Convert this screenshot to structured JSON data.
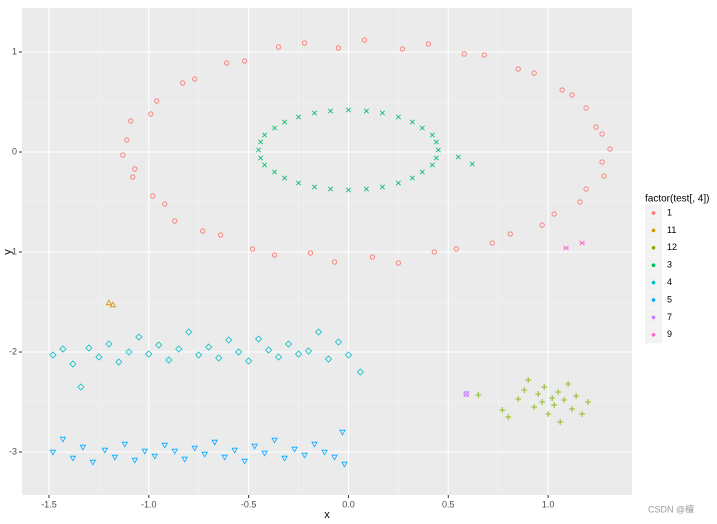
{
  "chart_data": {
    "type": "scatter",
    "x_label": "x",
    "y_label": "y",
    "legend_title": "factor(test[, 4])",
    "legend_position": "right",
    "annotation": "CSDN @檀",
    "grid": true,
    "xlim": [
      -1.635,
      1.42
    ],
    "ylim": [
      -3.43,
      1.44
    ],
    "xticks": [
      -1.5,
      {
        "value": -1,
        "label": "-1.0"
      },
      -0.5,
      {
        "value": 0,
        "label": "0.0"
      },
      0.5,
      {
        "value": 1,
        "label": "1.0"
      }
    ],
    "yticks": [
      -3,
      -2,
      -1,
      0,
      1
    ],
    "series": [
      {
        "name": "1",
        "color": "#F8766D",
        "shape": "circle",
        "x": [
          1.31,
          1.27,
          1.24,
          1.19,
          1.12,
          1.07,
          0.93,
          0.85,
          0.68,
          0.58,
          0.4,
          0.27,
          0.08,
          -0.05,
          -0.22,
          -0.35,
          -0.52,
          -0.61,
          -0.77,
          -0.83,
          -0.96,
          -0.99,
          -1.09,
          -1.11,
          -1.13,
          -1.07,
          -1.08,
          -0.98,
          -0.92,
          -0.87,
          -0.73,
          -0.64,
          -0.48,
          -0.37,
          -0.19,
          -0.07,
          0.12,
          0.25,
          0.43,
          0.54,
          0.72,
          0.81,
          0.97,
          1.03,
          1.16,
          1.19,
          1.28,
          1.27
        ],
        "y": [
          0.03,
          0.18,
          0.25,
          0.44,
          0.57,
          0.62,
          0.79,
          0.83,
          0.97,
          0.98,
          1.08,
          1.03,
          1.12,
          1.04,
          1.09,
          1.05,
          0.91,
          0.89,
          0.73,
          0.69,
          0.51,
          0.38,
          0.31,
          0.12,
          -0.03,
          -0.17,
          -0.25,
          -0.44,
          -0.52,
          -0.69,
          -0.79,
          -0.83,
          -0.97,
          -1.03,
          -1.01,
          -1.1,
          -1.05,
          -1.11,
          -1.0,
          -0.97,
          -0.91,
          -0.82,
          -0.73,
          -0.62,
          -0.5,
          -0.37,
          -0.24,
          -0.1
        ]
      },
      {
        "name": "11",
        "color": "#CD9600",
        "shape": "triangle",
        "x": [
          -1.2,
          -1.18
        ],
        "y": [
          -1.51,
          -1.53
        ]
      },
      {
        "name": "12",
        "color": "#7CAE00",
        "shape": "plus",
        "x": [
          0.65,
          0.77,
          0.8,
          0.85,
          0.88,
          0.9,
          0.93,
          0.95,
          0.97,
          0.98,
          1.0,
          1.02,
          1.03,
          1.05,
          1.06,
          1.08,
          1.1,
          1.12,
          1.14,
          1.17,
          1.2
        ],
        "y": [
          -2.43,
          -2.58,
          -2.65,
          -2.47,
          -2.38,
          -2.28,
          -2.55,
          -2.42,
          -2.5,
          -2.35,
          -2.62,
          -2.46,
          -2.53,
          -2.4,
          -2.7,
          -2.48,
          -2.32,
          -2.57,
          -2.44,
          -2.62,
          -2.5
        ]
      },
      {
        "name": "3",
        "color": "#00BE67",
        "shape": "cross",
        "x": [
          0.45,
          0.44,
          0.42,
          0.37,
          0.32,
          0.25,
          0.17,
          0.09,
          0.0,
          -0.09,
          -0.17,
          -0.25,
          -0.32,
          -0.37,
          -0.42,
          -0.44,
          -0.45,
          -0.44,
          -0.42,
          -0.37,
          -0.32,
          -0.25,
          -0.17,
          -0.09,
          0.0,
          0.09,
          0.17,
          0.25,
          0.32,
          0.37,
          0.42,
          0.44,
          0.55,
          0.62
        ],
        "y": [
          0.02,
          0.1,
          0.17,
          0.24,
          0.3,
          0.35,
          0.39,
          0.41,
          0.42,
          0.41,
          0.39,
          0.35,
          0.3,
          0.24,
          0.17,
          0.1,
          0.02,
          -0.06,
          -0.13,
          -0.2,
          -0.26,
          -0.31,
          -0.35,
          -0.37,
          -0.38,
          -0.37,
          -0.35,
          -0.31,
          -0.26,
          -0.2,
          -0.13,
          -0.06,
          -0.05,
          -0.12
        ]
      },
      {
        "name": "4",
        "color": "#00BFC4",
        "shape": "diamond",
        "x": [
          -1.48,
          -1.43,
          -1.38,
          -1.34,
          -1.3,
          -1.25,
          -1.2,
          -1.15,
          -1.1,
          -1.05,
          -1.0,
          -0.95,
          -0.9,
          -0.85,
          -0.8,
          -0.75,
          -0.7,
          -0.65,
          -0.6,
          -0.55,
          -0.5,
          -0.45,
          -0.4,
          -0.35,
          -0.3,
          -0.25,
          -0.2,
          -0.15,
          -0.1,
          -0.05,
          0.0,
          0.06
        ],
        "y": [
          -2.03,
          -1.97,
          -2.12,
          -2.35,
          -1.96,
          -2.05,
          -1.92,
          -2.1,
          -2.0,
          -1.85,
          -2.02,
          -1.93,
          -2.08,
          -1.97,
          -1.8,
          -2.03,
          -1.95,
          -2.06,
          -1.88,
          -2.0,
          -2.09,
          -1.87,
          -1.98,
          -2.05,
          -1.92,
          -2.02,
          -1.99,
          -1.8,
          -2.07,
          -1.9,
          -2.03,
          -2.2
        ]
      },
      {
        "name": "5",
        "color": "#00A9FF",
        "shape": "triangle-down",
        "x": [
          -1.48,
          -1.43,
          -1.38,
          -1.33,
          -1.28,
          -1.22,
          -1.17,
          -1.12,
          -1.07,
          -1.02,
          -0.97,
          -0.92,
          -0.87,
          -0.82,
          -0.77,
          -0.72,
          -0.67,
          -0.62,
          -0.57,
          -0.52,
          -0.47,
          -0.42,
          -0.37,
          -0.32,
          -0.27,
          -0.22,
          -0.17,
          -0.12,
          -0.07,
          -0.03,
          -0.02
        ],
        "y": [
          -3.0,
          -2.87,
          -3.06,
          -2.95,
          -3.1,
          -2.98,
          -3.05,
          -2.92,
          -3.08,
          -2.99,
          -3.04,
          -2.93,
          -2.99,
          -3.07,
          -2.96,
          -3.02,
          -2.9,
          -3.05,
          -2.98,
          -3.09,
          -2.94,
          -3.01,
          -2.88,
          -3.06,
          -2.97,
          -3.03,
          -2.92,
          -3.0,
          -3.05,
          -2.8,
          -3.12
        ]
      },
      {
        "name": "7",
        "color": "#C77CFF",
        "shape": "square-cross",
        "x": [
          0.59
        ],
        "y": [
          -2.42
        ]
      },
      {
        "name": "9",
        "color": "#FF61CC",
        "shape": "asterisk",
        "x": [
          1.09,
          1.17
        ],
        "y": [
          -0.96,
          -0.91
        ]
      }
    ]
  }
}
